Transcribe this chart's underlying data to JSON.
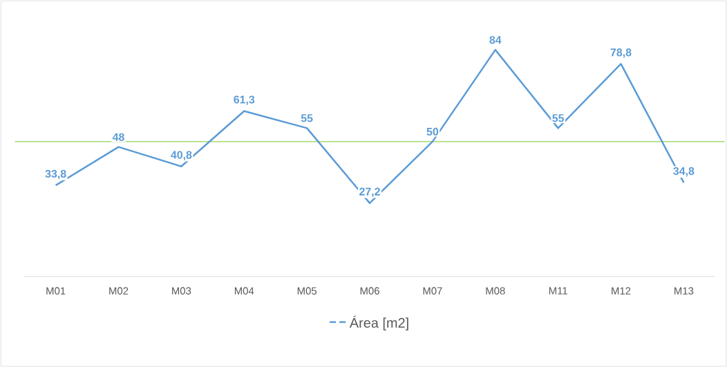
{
  "chart_data": {
    "type": "line",
    "categories": [
      "M01",
      "M02",
      "M03",
      "M04",
      "M05",
      "M06",
      "M07",
      "M08",
      "M11",
      "M12",
      "M13"
    ],
    "series": [
      {
        "name": "Área [m2]",
        "color": "#5b9bd5",
        "values": [
          33.8,
          48,
          40.8,
          61.3,
          55,
          27.2,
          50,
          84,
          55,
          78.8,
          34.8
        ],
        "value_labels": [
          "33,8",
          "48",
          "40,8",
          "61,3",
          "55",
          "27,2",
          "50",
          "84",
          "55",
          "78,8",
          "34,8"
        ]
      }
    ],
    "ref_lines": [
      {
        "axis": "y",
        "value": 50,
        "color": "#92d050"
      }
    ],
    "tick_labels": "x",
    "legend": "bottom",
    "marker": "none",
    "grid": false
  }
}
